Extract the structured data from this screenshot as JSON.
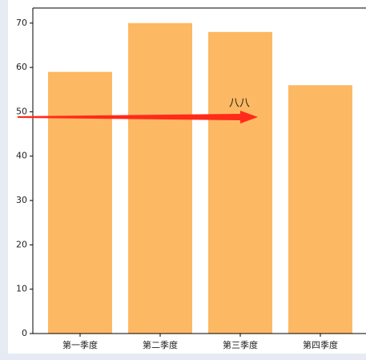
{
  "chart_data": {
    "type": "bar",
    "categories": [
      "第一季度",
      "第二季度",
      "第三季度",
      "第四季度"
    ],
    "values": [
      59,
      70,
      68,
      56
    ],
    "color": "#fdb863",
    "ylim": [
      0,
      73.4
    ],
    "yticks": [
      0,
      10,
      20,
      30,
      40,
      50,
      60,
      70
    ],
    "annotation": {
      "text": "八八",
      "color": "#ff2a1a"
    }
  }
}
